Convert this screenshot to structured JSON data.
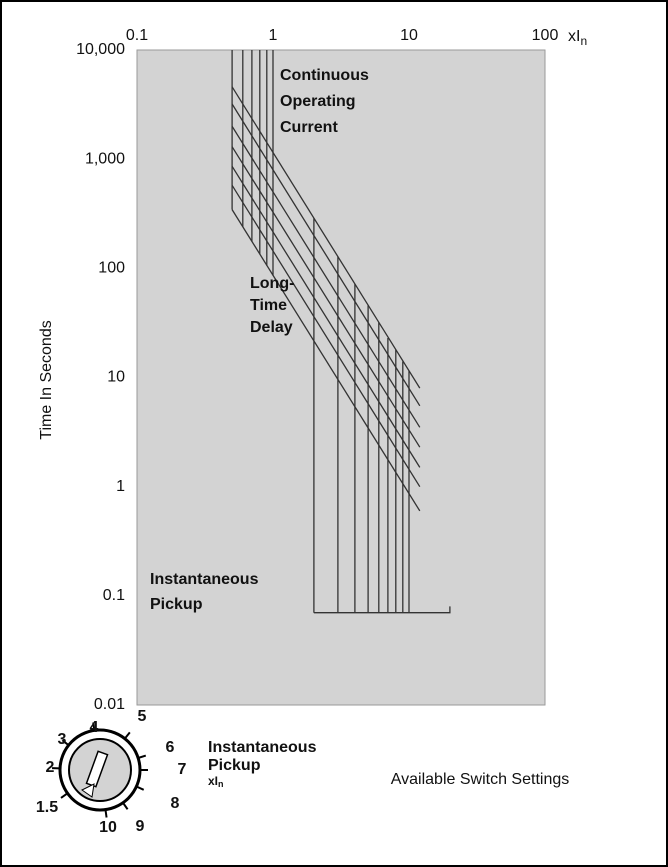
{
  "chart_data": {
    "type": "line",
    "log_x": true,
    "log_y": true,
    "background": "#d3d3d3",
    "x_label": {
      "main": "xI",
      "sub": "n"
    },
    "y_label": "Time In Seconds",
    "xlim": [
      0.1,
      100
    ],
    "xticks": [
      0.1,
      1,
      10,
      100
    ],
    "ylim": [
      0.01,
      10000
    ],
    "yticks": [
      {
        "value": 10000,
        "label": "10,000"
      },
      {
        "value": 1000,
        "label": "1,000"
      },
      100,
      10,
      1,
      0.1,
      0.01
    ],
    "annotations": [
      {
        "lines": [
          "Continuous",
          "Operating",
          "Current"
        ]
      },
      {
        "lines": [
          "Long-",
          "Time",
          "Delay"
        ]
      },
      {
        "lines": [
          "Instantaneous",
          "Pickup"
        ]
      }
    ],
    "series": [
      {
        "color": "#333333",
        "x": [
          0.5,
          0.5
        ],
        "values": [
          10000,
          345
        ]
      },
      {
        "color": "#333333",
        "x": [
          0.6,
          0.6
        ],
        "values": [
          10000,
          240
        ]
      },
      {
        "color": "#333333",
        "x": [
          0.7,
          0.7
        ],
        "values": [
          10000,
          176
        ]
      },
      {
        "color": "#333333",
        "x": [
          0.8,
          0.8
        ],
        "values": [
          10000,
          135
        ]
      },
      {
        "color": "#333333",
        "x": [
          0.9,
          0.9
        ],
        "values": [
          10000,
          106
        ]
      },
      {
        "color": "#333333",
        "x": [
          1,
          1
        ],
        "values": [
          10000,
          86
        ]
      },
      {
        "color": "#333333",
        "x": [
          0.5,
          12
        ],
        "values": [
          4600,
          8
        ]
      },
      {
        "color": "#333333",
        "x": [
          0.5,
          12
        ],
        "values": [
          3200,
          5.5
        ]
      },
      {
        "color": "#333333",
        "x": [
          0.5,
          12
        ],
        "values": [
          2000,
          3.5
        ]
      },
      {
        "color": "#333333",
        "x": [
          0.5,
          12
        ],
        "values": [
          1300,
          2.3
        ]
      },
      {
        "color": "#333333",
        "x": [
          0.5,
          12
        ],
        "values": [
          860,
          1.5
        ]
      },
      {
        "color": "#333333",
        "x": [
          0.5,
          12
        ],
        "values": [
          576,
          1
        ]
      },
      {
        "color": "#333333",
        "x": [
          0.5,
          12
        ],
        "values": [
          345,
          0.6
        ]
      },
      {
        "color": "#333333",
        "x": [
          2,
          2
        ],
        "values": [
          287,
          0.07
        ]
      },
      {
        "color": "#333333",
        "x": [
          3,
          3
        ],
        "values": [
          128,
          0.07
        ]
      },
      {
        "color": "#333333",
        "x": [
          4,
          4
        ],
        "values": [
          72,
          0.07
        ]
      },
      {
        "color": "#333333",
        "x": [
          5,
          5
        ],
        "values": [
          46,
          0.07
        ]
      },
      {
        "color": "#333333",
        "x": [
          6,
          6
        ],
        "values": [
          32,
          0.07
        ]
      },
      {
        "color": "#333333",
        "x": [
          7,
          7
        ],
        "values": [
          23,
          0.07
        ]
      },
      {
        "color": "#333333",
        "x": [
          8,
          8
        ],
        "values": [
          18,
          0.07
        ]
      },
      {
        "color": "#333333",
        "x": [
          9,
          9
        ],
        "values": [
          14,
          0.07
        ]
      },
      {
        "color": "#333333",
        "x": [
          10,
          10
        ],
        "values": [
          11.5,
          0.07
        ]
      },
      {
        "color": "#333333",
        "x": [
          2,
          20,
          20
        ],
        "values": [
          0.07,
          0.07,
          0.08
        ]
      }
    ]
  },
  "dial": {
    "title_lines": [
      "Instantaneous",
      "Pickup"
    ],
    "unit": {
      "main": "xI",
      "sub": "n"
    },
    "settings": [
      "1.5",
      "2",
      "3",
      "4",
      "5",
      "6",
      "7",
      "8",
      "9",
      "10"
    ]
  },
  "caption": "Available Switch Settings"
}
